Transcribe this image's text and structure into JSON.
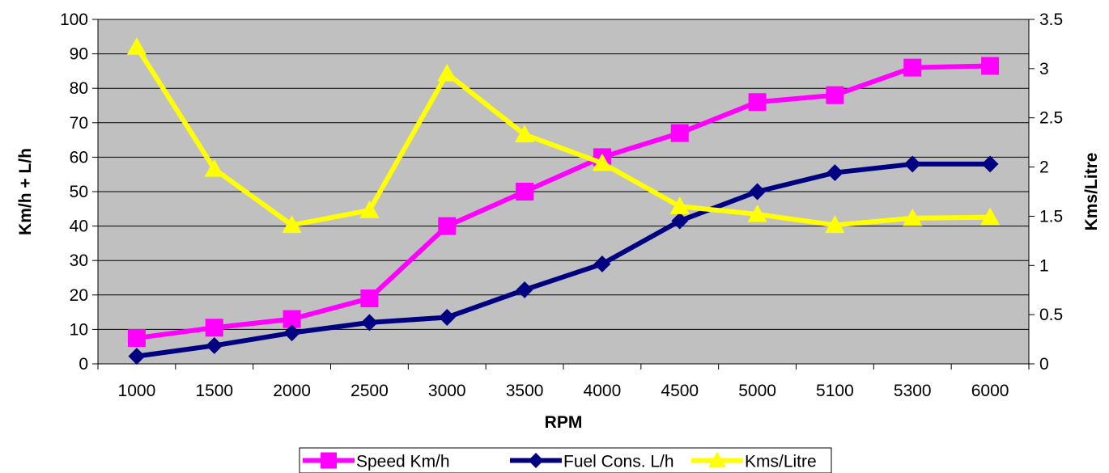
{
  "chart_data": {
    "type": "line",
    "title": "",
    "xlabel": "RPM",
    "ylabel": "Km/h + L/h",
    "y2label": "Kms/Litre",
    "categories": [
      "1000",
      "1500",
      "2000",
      "2500",
      "3000",
      "3500",
      "4000",
      "4500",
      "5000",
      "5100",
      "5300",
      "6000"
    ],
    "ylim": [
      0,
      100
    ],
    "y2lim": [
      0,
      3.5
    ],
    "yticks": [
      "0",
      "10",
      "20",
      "30",
      "40",
      "50",
      "60",
      "70",
      "80",
      "90",
      "100"
    ],
    "y2ticks": [
      "0",
      "0.5",
      "1",
      "1.5",
      "2",
      "2.5",
      "3",
      "3.5"
    ],
    "grid": true,
    "plot_background": "#c0c0c0",
    "legend_position": "bottom",
    "series": [
      {
        "name": "Speed Km/h",
        "axis": "left",
        "marker": "square",
        "color": "#ff00ff",
        "values": [
          7.5,
          10.5,
          13,
          19,
          40,
          50,
          60,
          67,
          76,
          78,
          86,
          86.5
        ]
      },
      {
        "name": "Fuel Cons. L/h",
        "axis": "left",
        "marker": "diamond",
        "color": "#000080",
        "values": [
          2.2,
          5.3,
          9,
          12,
          13.5,
          21.5,
          29,
          41.5,
          50,
          55.5,
          58,
          58
        ]
      },
      {
        "name": "Kms/Litre",
        "axis": "right",
        "marker": "triangle",
        "color": "#ffff00",
        "values": [
          3.22,
          1.98,
          1.41,
          1.56,
          2.95,
          2.33,
          2.04,
          1.6,
          1.52,
          1.41,
          1.48,
          1.49
        ]
      }
    ]
  }
}
